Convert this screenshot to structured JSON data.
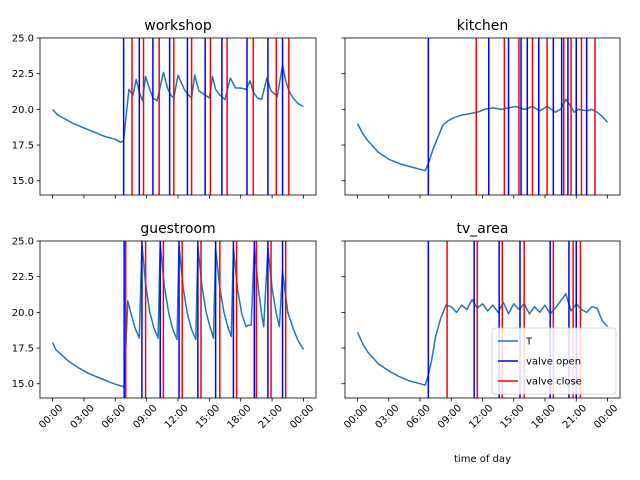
{
  "chart_data": {
    "type": "line",
    "xlabel": "time of day",
    "ylim": [
      14,
      25
    ],
    "xlim_hours": [
      -1.2,
      25.2
    ],
    "y_ticks": [
      15.0,
      17.5,
      20.0,
      22.5,
      25.0
    ],
    "y_tick_labels": [
      "15.0",
      "17.5",
      "20.0",
      "22.5",
      "25.0"
    ],
    "x_ticks_hours": [
      0,
      3,
      6,
      9,
      12,
      15,
      18,
      21,
      24
    ],
    "x_tick_labels": [
      "00:00",
      "03:00",
      "06:00",
      "09:00",
      "12:00",
      "15:00",
      "18:00",
      "21:00",
      "00:00"
    ],
    "legend": {
      "placement": "lower right",
      "entries": [
        {
          "label": "T",
          "color": "#1f77b4"
        },
        {
          "label": "valve open",
          "color": "#0000ff"
        },
        {
          "label": "valve close",
          "color": "#ff0000"
        }
      ]
    },
    "colors": {
      "temperature": "#1f77b4",
      "valve_open": "#0000ff",
      "valve_close": "#ff0000"
    },
    "panels": [
      {
        "title": "workshop",
        "temperature": {
          "x": [
            0.0,
            0.5,
            1.0,
            2.0,
            3.0,
            4.0,
            5.0,
            6.0,
            6.5,
            6.8,
            7.3,
            7.7,
            8.0,
            8.3,
            8.6,
            8.9,
            9.3,
            9.6,
            10.0,
            10.6,
            11.0,
            11.3,
            11.6,
            12.0,
            12.6,
            13.0,
            13.3,
            13.6,
            14.0,
            14.6,
            15.0,
            15.3,
            15.6,
            16.0,
            16.5,
            17.0,
            17.5,
            18.0,
            18.5,
            18.9,
            19.2,
            19.6,
            20.0,
            20.5,
            20.9,
            21.2,
            21.5,
            22.0,
            22.3,
            22.6,
            23.0,
            23.5,
            24.0
          ],
          "y": [
            20.0,
            19.6,
            19.4,
            19.0,
            18.7,
            18.4,
            18.1,
            17.9,
            17.7,
            17.8,
            21.4,
            21.0,
            22.1,
            21.2,
            20.6,
            22.3,
            21.4,
            20.8,
            20.6,
            22.6,
            21.5,
            21.0,
            20.8,
            22.4,
            21.4,
            21.0,
            20.8,
            22.4,
            21.3,
            21.0,
            20.8,
            22.3,
            21.4,
            21.0,
            20.7,
            22.2,
            21.5,
            21.5,
            21.4,
            22.0,
            21.2,
            20.8,
            20.7,
            22.2,
            21.3,
            21.1,
            20.9,
            23.1,
            22.0,
            21.3,
            20.8,
            20.4,
            20.2
          ]
        },
        "valve_open": [
          6.8,
          8.3,
          9.6,
          11.2,
          12.9,
          14.6,
          16.2,
          18.6,
          20.6,
          22.0
        ],
        "valve_close": [
          7.6,
          8.7,
          10.2,
          11.6,
          13.3,
          15.1,
          16.7,
          19.2,
          21.4,
          22.6
        ]
      },
      {
        "title": "kitchen",
        "temperature": {
          "x": [
            0.0,
            0.5,
            1.0,
            2.0,
            3.0,
            4.0,
            5.0,
            6.0,
            6.5,
            6.9,
            7.3,
            7.8,
            8.2,
            8.7,
            9.2,
            10.0,
            10.8,
            11.5,
            12.2,
            13.0,
            13.8,
            14.5,
            15.2,
            16.0,
            16.8,
            17.5,
            18.2,
            19.0,
            19.5,
            20.0,
            20.4,
            20.8,
            21.2,
            22.0,
            22.5,
            23.0,
            23.5,
            24.0
          ],
          "y": [
            19.0,
            18.3,
            17.8,
            17.0,
            16.5,
            16.2,
            16.0,
            15.8,
            15.7,
            16.4,
            17.3,
            18.2,
            18.9,
            19.2,
            19.4,
            19.6,
            19.7,
            19.8,
            20.0,
            20.1,
            20.0,
            20.1,
            20.2,
            20.0,
            20.2,
            19.9,
            20.2,
            19.8,
            20.0,
            20.7,
            20.3,
            19.8,
            20.0,
            19.9,
            20.0,
            19.8,
            19.5,
            19.1
          ]
        },
        "valve_open": [
          6.8,
          12.6,
          14.5,
          15.7,
          16.3,
          17.4,
          18.8,
          19.6,
          20.2,
          21.0,
          22.0
        ],
        "valve_close": [
          11.4,
          14.1,
          15.5,
          16.8,
          18.2,
          19.8,
          20.5,
          21.5,
          22.8
        ]
      },
      {
        "title": "guestroom",
        "temperature": {
          "x": [
            0.0,
            0.3,
            0.6,
            1.5,
            2.5,
            3.5,
            4.5,
            5.5,
            6.3,
            6.8,
            6.85,
            7.2,
            7.5,
            7.9,
            8.3,
            8.55,
            8.9,
            9.3,
            9.7,
            10.1,
            10.3,
            10.7,
            11.1,
            11.5,
            11.9,
            12.1,
            12.5,
            12.9,
            13.3,
            13.7,
            13.9,
            14.3,
            14.7,
            15.1,
            15.4,
            15.6,
            16.0,
            16.4,
            16.8,
            17.1,
            17.3,
            17.7,
            18.1,
            18.5,
            18.7,
            19.0,
            19.3,
            19.7,
            20.0,
            20.2,
            20.6,
            21.0,
            21.4,
            21.7,
            22.0,
            22.5,
            23.0,
            23.5,
            24.0
          ],
          "y": [
            17.9,
            17.4,
            17.2,
            16.6,
            16.1,
            15.7,
            15.4,
            15.1,
            14.9,
            14.8,
            14.8,
            20.8,
            19.9,
            18.9,
            18.2,
            24.8,
            22.0,
            20.0,
            18.9,
            18.2,
            24.8,
            21.8,
            20.0,
            18.8,
            18.1,
            24.7,
            21.7,
            19.9,
            18.8,
            18.1,
            24.6,
            21.8,
            20.0,
            18.9,
            18.2,
            24.5,
            21.7,
            20.0,
            18.9,
            18.3,
            24.5,
            21.6,
            19.9,
            19.0,
            19.1,
            19.1,
            24.5,
            21.6,
            19.9,
            19.0,
            24.5,
            21.7,
            19.9,
            19.0,
            22.9,
            20.0,
            18.9,
            18.0,
            17.4
          ]
        },
        "valve_open": [
          6.85,
          8.55,
          10.3,
          12.1,
          13.9,
          15.6,
          17.3,
          19.3,
          20.6,
          22.0
        ],
        "valve_close": [
          7.0,
          8.9,
          10.6,
          12.4,
          14.2,
          16.0,
          17.6,
          19.5,
          20.9,
          22.3
        ]
      },
      {
        "title": "tv_area",
        "temperature": {
          "x": [
            0.0,
            0.5,
            1.0,
            2.0,
            3.0,
            4.0,
            5.0,
            6.0,
            6.5,
            6.8,
            7.1,
            7.5,
            8.0,
            8.5,
            9.0,
            9.5,
            10.0,
            10.5,
            11.0,
            11.5,
            12.0,
            12.5,
            13.0,
            13.5,
            14.0,
            14.5,
            15.0,
            15.5,
            16.0,
            16.5,
            17.0,
            17.5,
            18.0,
            18.5,
            19.0,
            19.5,
            20.0,
            20.5,
            21.0,
            21.5,
            22.0,
            22.5,
            23.0,
            23.5,
            24.0
          ],
          "y": [
            18.6,
            17.8,
            17.2,
            16.4,
            15.9,
            15.5,
            15.2,
            15.0,
            14.9,
            15.6,
            16.6,
            18.3,
            19.6,
            20.5,
            20.4,
            20.0,
            20.5,
            20.2,
            20.9,
            20.3,
            20.6,
            20.1,
            20.5,
            20.0,
            20.7,
            19.9,
            20.6,
            20.2,
            20.6,
            19.9,
            20.4,
            20.0,
            20.5,
            19.9,
            20.3,
            20.8,
            21.3,
            20.1,
            20.6,
            20.2,
            20.0,
            20.4,
            20.3,
            19.4,
            19.0
          ]
        },
        "valve_open": [
          6.8,
          11.2,
          13.6,
          15.6,
          18.5,
          20.3,
          21.0
        ],
        "valve_close": [
          8.6,
          11.5,
          13.9,
          16.0,
          18.8,
          20.7,
          21.4
        ]
      }
    ]
  }
}
